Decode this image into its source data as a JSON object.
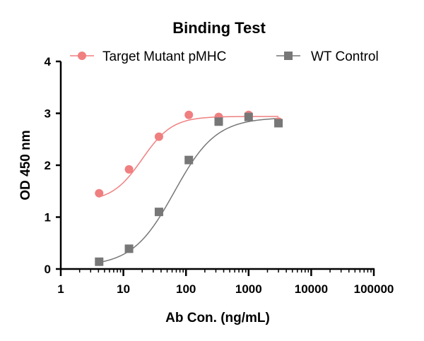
{
  "chart_data": {
    "type": "scatter",
    "title": "Binding Test",
    "xlabel": "Ab Con. (ng/mL)",
    "ylabel": "OD 450 nm",
    "xscale": "log",
    "xlim": [
      1,
      100000
    ],
    "ylim": [
      0,
      4
    ],
    "xticks": [
      1,
      10,
      100,
      1000,
      10000,
      100000
    ],
    "xtick_labels": [
      "1",
      "10",
      "100",
      "1000",
      "10000",
      "100000"
    ],
    "yticks": [
      0,
      1,
      2,
      3,
      4
    ],
    "ytick_labels": [
      "0",
      "1",
      "2",
      "3",
      "4"
    ],
    "grid": false,
    "legend_position": "top",
    "series": [
      {
        "name": "Target Mutant pMHC",
        "marker": "circle",
        "color": "#f07f80",
        "x": [
          4.1,
          12.3,
          37,
          111,
          333,
          1000,
          3000
        ],
        "y": [
          1.46,
          1.92,
          2.55,
          2.97,
          2.93,
          2.97,
          2.84
        ],
        "fit": {
          "bottom": 1.3,
          "top": 2.94,
          "ec50": 20,
          "hill": 1.8
        }
      },
      {
        "name": "WT Control",
        "marker": "square",
        "color": "#777777",
        "x": [
          4.1,
          12.3,
          37,
          111,
          333,
          1000,
          3000
        ],
        "y": [
          0.14,
          0.39,
          1.1,
          2.1,
          2.84,
          2.93,
          2.81
        ],
        "fit": {
          "bottom": 0.05,
          "top": 2.92,
          "ec50": 65,
          "hill": 1.3
        }
      }
    ]
  }
}
